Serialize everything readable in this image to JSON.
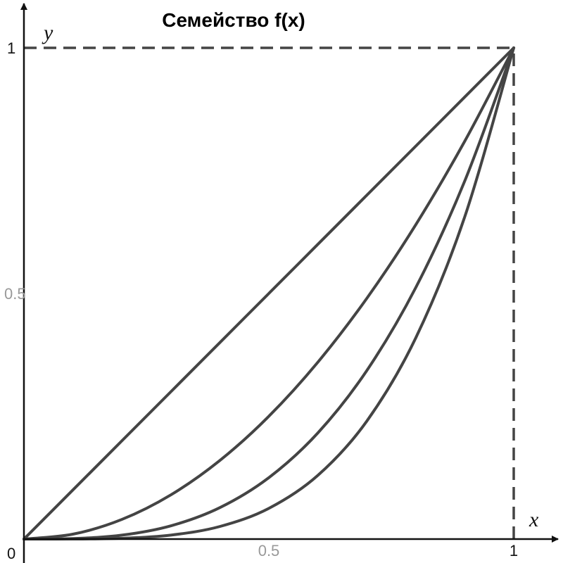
{
  "chart_data": {
    "type": "line",
    "title": "Семейство f(x)",
    "xlabel": "x",
    "ylabel": "y",
    "xlim": [
      0,
      1
    ],
    "ylim": [
      0,
      1
    ],
    "origin_label": "0",
    "x_ticks": [
      {
        "value": 0.5,
        "label": "0.5",
        "style": "light"
      },
      {
        "value": 1,
        "label": "1",
        "style": "dark"
      }
    ],
    "y_ticks": [
      {
        "value": 0.5,
        "label": "0.5",
        "style": "light"
      },
      {
        "value": 1,
        "label": "1",
        "style": "dark"
      }
    ],
    "reference_lines": [
      {
        "x": 1,
        "from_y": 0,
        "to_y": 1,
        "style": "dashed"
      },
      {
        "y": 1,
        "from_x": 0,
        "to_x": 1,
        "style": "dashed"
      }
    ],
    "grid": false,
    "series": [
      {
        "points": [
          [
            0,
            0
          ],
          [
            0.1,
            0.1
          ],
          [
            0.2,
            0.2
          ],
          [
            0.3,
            0.3
          ],
          [
            0.4,
            0.4
          ],
          [
            0.5,
            0.5
          ],
          [
            0.6,
            0.6
          ],
          [
            0.7,
            0.7
          ],
          [
            0.8,
            0.8
          ],
          [
            0.9,
            0.9
          ],
          [
            1,
            1
          ]
        ]
      },
      {
        "points": [
          [
            0,
            0
          ],
          [
            0.1,
            0.01
          ],
          [
            0.2,
            0.04
          ],
          [
            0.3,
            0.09
          ],
          [
            0.4,
            0.16
          ],
          [
            0.5,
            0.25
          ],
          [
            0.6,
            0.36
          ],
          [
            0.7,
            0.49
          ],
          [
            0.8,
            0.64
          ],
          [
            0.9,
            0.81
          ],
          [
            1,
            1
          ]
        ]
      },
      {
        "points": [
          [
            0,
            0
          ],
          [
            0.1,
            0.001
          ],
          [
            0.2,
            0.008
          ],
          [
            0.3,
            0.027
          ],
          [
            0.4,
            0.064
          ],
          [
            0.5,
            0.125
          ],
          [
            0.6,
            0.216
          ],
          [
            0.7,
            0.343
          ],
          [
            0.8,
            0.512
          ],
          [
            0.9,
            0.729
          ],
          [
            1,
            1
          ]
        ]
      },
      {
        "points": [
          [
            0,
            0
          ],
          [
            0.1,
            0.0001
          ],
          [
            0.2,
            0.0016
          ],
          [
            0.3,
            0.0081
          ],
          [
            0.4,
            0.0256
          ],
          [
            0.5,
            0.0625
          ],
          [
            0.6,
            0.1296
          ],
          [
            0.7,
            0.2401
          ],
          [
            0.8,
            0.4096
          ],
          [
            0.9,
            0.6561
          ],
          [
            1,
            1
          ]
        ]
      }
    ],
    "colors": {
      "curve": "#444444",
      "axis": "#111111",
      "light_label": "#999999"
    }
  }
}
